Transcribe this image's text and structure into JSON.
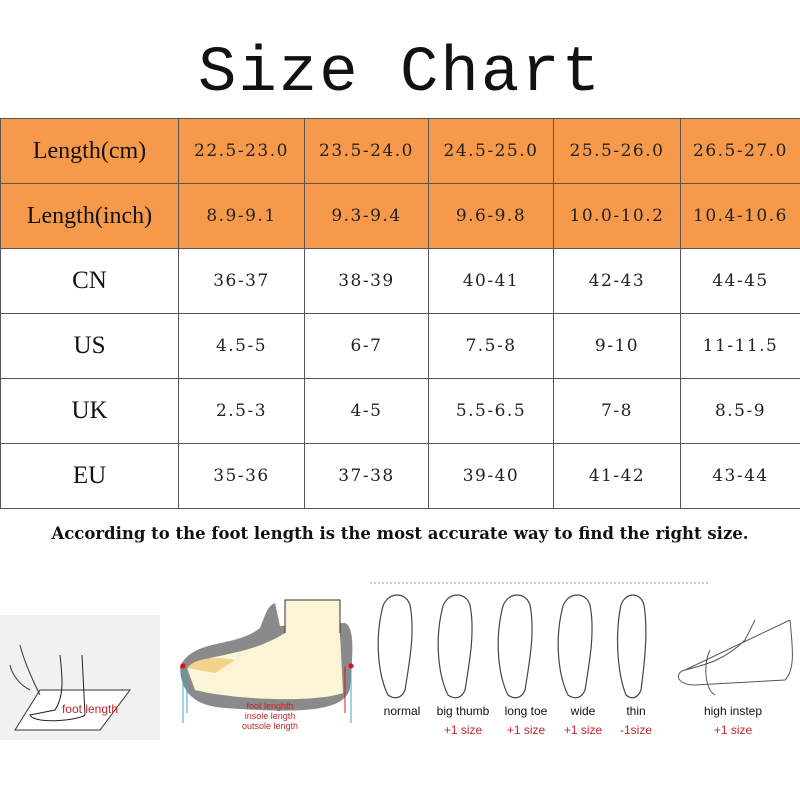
{
  "title": "Size Chart",
  "table": {
    "rows": [
      {
        "label": "Length(cm)",
        "values": [
          "22.5-23.0",
          "23.5-24.0",
          "24.5-25.0",
          "25.5-26.0",
          "26.5-27.0"
        ]
      },
      {
        "label": "Length(inch)",
        "values": [
          "8.9-9.1",
          "9.3-9.4",
          "9.6-9.8",
          "10.0-10.2",
          "10.4-10.6"
        ]
      },
      {
        "label": "CN",
        "values": [
          "36-37",
          "38-39",
          "40-41",
          "42-43",
          "44-45"
        ]
      },
      {
        "label": "US",
        "values": [
          "4.5-5",
          "6-7",
          "7.5-8",
          "9-10",
          "11-11.5"
        ]
      },
      {
        "label": "UK",
        "values": [
          "2.5-3",
          "4-5",
          "5.5-6.5",
          "7-8",
          "8.5-9"
        ]
      },
      {
        "label": "EU",
        "values": [
          "35-36",
          "37-38",
          "39-40",
          "41-42",
          "43-44"
        ]
      }
    ],
    "header_color": "#F7994A"
  },
  "note": "According to the foot length is the most  accurate way to find the right size.",
  "illustrations": {
    "measure": {
      "label": "foot length"
    },
    "shoe": {
      "labels": [
        "foot lenghth",
        "insole length",
        "outsole length"
      ]
    },
    "feet": [
      {
        "type": "normal",
        "adjust": ""
      },
      {
        "type": "big thumb",
        "adjust": "+1 size"
      },
      {
        "type": "long toe",
        "adjust": "+1 size"
      },
      {
        "type": "wide",
        "adjust": "+1 size"
      },
      {
        "type": "thin",
        "adjust": "-1size"
      },
      {
        "type": "high instep",
        "adjust": "+1 size"
      }
    ]
  }
}
